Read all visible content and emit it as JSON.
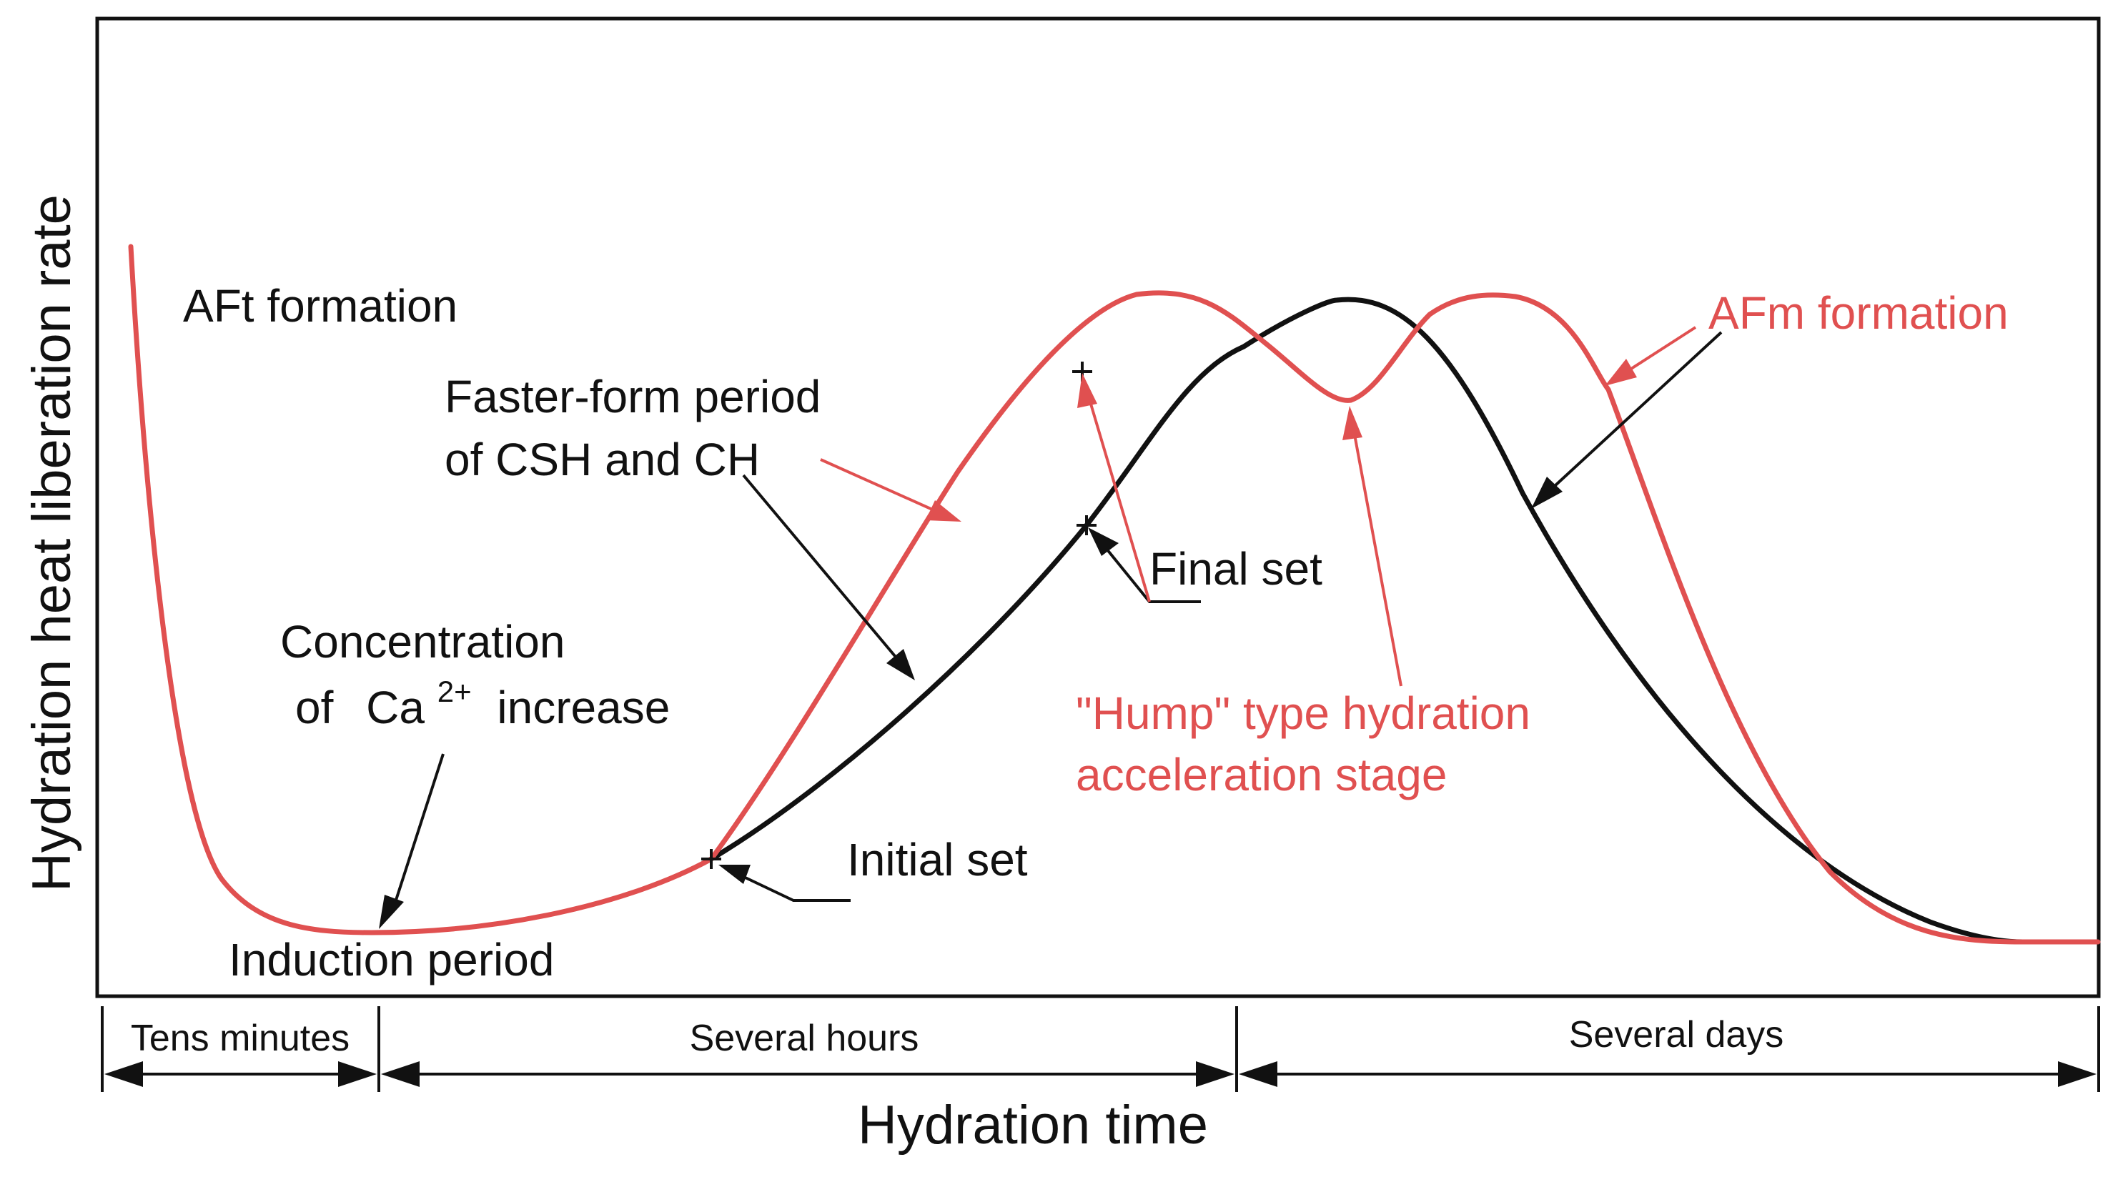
{
  "colors": {
    "red": "#e05050",
    "black": "#111111"
  },
  "axes": {
    "y_title": "Hydration heat liberation rate",
    "x_title": "Hydration time"
  },
  "periods": [
    {
      "label": "Tens minutes"
    },
    {
      "label": "Several hours"
    },
    {
      "label": "Several days"
    }
  ],
  "labels": {
    "aft": "AFt formation",
    "faster_line1": "Faster-form period",
    "faster_line2": "of CSH and CH",
    "conc_line1": "Concentration",
    "conc_prefix": "of",
    "conc_ion": "Ca",
    "conc_charge": "2+",
    "conc_suffix": "increase",
    "induction": "Induction period",
    "initial_set": "Initial set",
    "final_set": "Final set",
    "hump_line1": "\"Hump\" type hydration",
    "hump_line2": "acceleration stage",
    "afm": "AFm formation"
  }
}
